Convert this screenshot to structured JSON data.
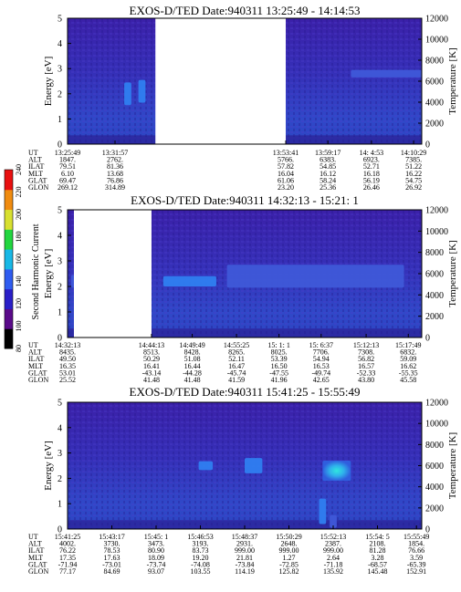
{
  "chart_data": [
    {
      "type": "heatmap",
      "title": "EXOS-D/TED   Date:940311   13:25:49 - 14:14:53",
      "ylabel": "Energy [eV]",
      "ylabel_right": "Temperature [K]",
      "ylim": [
        0,
        5
      ],
      "ylim_right": [
        0,
        12000
      ],
      "yticks": [
        "0",
        "1",
        "2",
        "3",
        "4",
        "5"
      ],
      "yticks_right": [
        "0",
        "2000",
        "4000",
        "6000",
        "8000",
        "10000",
        "12000"
      ],
      "data_gap": [
        0.248,
        0.616
      ],
      "ephemeris": {
        "labels": [
          "UT",
          "ALT",
          "ILAT",
          "MLT",
          "GLAT",
          "GLON"
        ],
        "columns": [
          {
            "pos": 0.0,
            "values": [
              "13:25:49",
              "1847.",
              "79.51",
              "6.10",
              "69.47",
              "269.12"
            ]
          },
          {
            "pos": 0.134,
            "values": [
              "13:31:57",
              "2762.",
              "81.36",
              "13.68",
              "76.86",
              "314.89"
            ]
          },
          {
            "pos": 0.616,
            "values": [
              "13:53:41",
              "5766.",
              "57.82",
              "16.04",
              "61.06",
              "23.20"
            ]
          },
          {
            "pos": 0.735,
            "values": [
              "13:59:17",
              "6383.",
              "54.85",
              "16.12",
              "58.24",
              "25.36"
            ]
          },
          {
            "pos": 0.858,
            "values": [
              "14: 4:53",
              "6923.",
              "52.71",
              "16.18",
              "56.19",
              "26.46"
            ]
          },
          {
            "pos": 0.977,
            "values": [
              "14:10:29",
              "7385.",
              "51.22",
              "16.22",
              "54.75",
              "26.92"
            ]
          }
        ]
      },
      "features": [
        {
          "x": 0.16,
          "y": 2.0,
          "w": 0.02,
          "h": 0.9,
          "level": 0.65
        },
        {
          "x": 0.2,
          "y": 2.1,
          "w": 0.02,
          "h": 0.9,
          "level": 0.62
        },
        {
          "x": 0.8,
          "y": 2.8,
          "w": 0.2,
          "h": 0.3,
          "level": 0.45
        }
      ]
    },
    {
      "type": "heatmap",
      "title": "EXOS-D/TED   Date:940311   14:32:13 - 15:21: 1",
      "ylabel": "Energy [eV]",
      "ylabel_right": "Temperature [K]",
      "ylim": [
        0,
        5
      ],
      "ylim_right": [
        0,
        12000
      ],
      "yticks": [
        "0",
        "1",
        "2",
        "3",
        "4",
        "5"
      ],
      "yticks_right": [
        "0",
        "2000",
        "4000",
        "6000",
        "8000",
        "10000",
        "12000"
      ],
      "data_gap": [
        0.018,
        0.237
      ],
      "ephemeris": {
        "labels": [
          "UT",
          "ALT",
          "ILAT",
          "MLT",
          "GLAT",
          "GLON"
        ],
        "columns": [
          {
            "pos": 0.0,
            "values": [
              "14:32:13",
              "8435.",
              "49.50",
              "16.35",
              "53.01",
              "25.52"
            ]
          },
          {
            "pos": 0.237,
            "values": [
              "14:44:13",
              "8513.",
              "50.29",
              "16.41",
              "-43.14",
              "41.48"
            ]
          },
          {
            "pos": 0.352,
            "values": [
              "14:49:49",
              "8428.",
              "51.08",
              "16.44",
              "-44.28",
              "41.48"
            ]
          },
          {
            "pos": 0.477,
            "values": [
              "14:55:25",
              "8265.",
              "52.11",
              "16.47",
              "-45.74",
              "41.59"
            ]
          },
          {
            "pos": 0.597,
            "values": [
              "15: 1: 1",
              "8025.",
              "53.39",
              "16.50",
              "-47.55",
              "41.96"
            ]
          },
          {
            "pos": 0.716,
            "values": [
              "15: 6:37",
              "7706.",
              "54.94",
              "16.53",
              "-49.74",
              "42.65"
            ]
          },
          {
            "pos": 0.843,
            "values": [
              "15:12:13",
              "7308.",
              "56.82",
              "16.57",
              "-52.33",
              "43.80"
            ]
          },
          {
            "pos": 0.962,
            "values": [
              "15:17:49",
              "6832.",
              "59.09",
              "16.62",
              "-55.35",
              "45.58"
            ]
          }
        ]
      },
      "features": [
        {
          "x": 0.01,
          "y": 2.2,
          "w": 0.01,
          "h": 0.5,
          "level": 0.35
        },
        {
          "x": 0.27,
          "y": 2.2,
          "w": 0.15,
          "h": 0.4,
          "level": 0.55
        },
        {
          "x": 0.45,
          "y": 2.4,
          "w": 0.5,
          "h": 0.9,
          "level": 0.38
        }
      ]
    },
    {
      "type": "heatmap",
      "title": "EXOS-D/TED   Date:940311   15:41:25 - 15:55:49",
      "ylabel": "Energy [eV]",
      "ylabel_right": "Temperature [K]",
      "ylim": [
        0,
        5
      ],
      "ylim_right": [
        0,
        12000
      ],
      "yticks": [
        "0",
        "1",
        "2",
        "3",
        "4",
        "5"
      ],
      "yticks_right": [
        "0",
        "2000",
        "4000",
        "6000",
        "8000",
        "10000",
        "12000"
      ],
      "data_gap": null,
      "ephemeris": {
        "labels": [
          "UT",
          "ALT",
          "ILAT",
          "MLT",
          "GLAT",
          "GLON"
        ],
        "columns": [
          {
            "pos": 0.0,
            "values": [
              "15:41:25",
              "4002.",
              "76.22",
              "17.35",
              "-71.94",
              "77.17"
            ]
          },
          {
            "pos": 0.125,
            "values": [
              "15:43:17",
              "3730.",
              "78.53",
              "17.63",
              "-73.01",
              "84.69"
            ]
          },
          {
            "pos": 0.25,
            "values": [
              "15:45: 1",
              "3473.",
              "80.90",
              "18.09",
              "-73.74",
              "93.07"
            ]
          },
          {
            "pos": 0.375,
            "values": [
              "15:46:53",
              "3193.",
              "83.73",
              "19.20",
              "-74.08",
              "103.55"
            ]
          },
          {
            "pos": 0.5,
            "values": [
              "15:48:37",
              "2931.",
              "999.00",
              "21.81",
              "-73.84",
              "114.19"
            ]
          },
          {
            "pos": 0.625,
            "values": [
              "15:50:29",
              "2648.",
              "999.00",
              "1.27",
              "-72.85",
              "125.82"
            ]
          },
          {
            "pos": 0.75,
            "values": [
              "15:52:13",
              "2387.",
              "999.00",
              "2.64",
              "-71.18",
              "135.92"
            ]
          },
          {
            "pos": 0.875,
            "values": [
              "15:54: 5",
              "2108.",
              "81.28",
              "3.28",
              "-68.57",
              "145.48"
            ]
          },
          {
            "pos": 0.985,
            "values": [
              "15:55:49",
              "1854.",
              "76.66",
              "3.59",
              "-65.39",
              "152.91"
            ]
          }
        ]
      },
      "features": [
        {
          "x": 0.37,
          "y": 2.5,
          "w": 0.04,
          "h": 0.35,
          "level": 0.55
        },
        {
          "x": 0.5,
          "y": 2.5,
          "w": 0.05,
          "h": 0.6,
          "level": 0.6
        },
        {
          "x": 0.72,
          "y": 2.3,
          "w": 0.08,
          "h": 0.8,
          "level": 0.88
        },
        {
          "x": 0.71,
          "y": 0.7,
          "w": 0.02,
          "h": 1.0,
          "level": 0.6
        },
        {
          "x": 0.74,
          "y": 0.3,
          "w": 0.02,
          "h": 0.5,
          "level": 0.45
        }
      ]
    }
  ],
  "colorbar": {
    "label": "Second Harmonic Current",
    "ticks": [
      "80",
      "100",
      "120",
      "140",
      "160",
      "180",
      "200",
      "220",
      "240"
    ],
    "range": [
      80,
      240
    ],
    "colors": [
      "#000000",
      "#5a0a8a",
      "#2a1fc8",
      "#2f5cf0",
      "#18b8e6",
      "#22d640",
      "#d8e030",
      "#f08c10",
      "#e81010"
    ]
  }
}
